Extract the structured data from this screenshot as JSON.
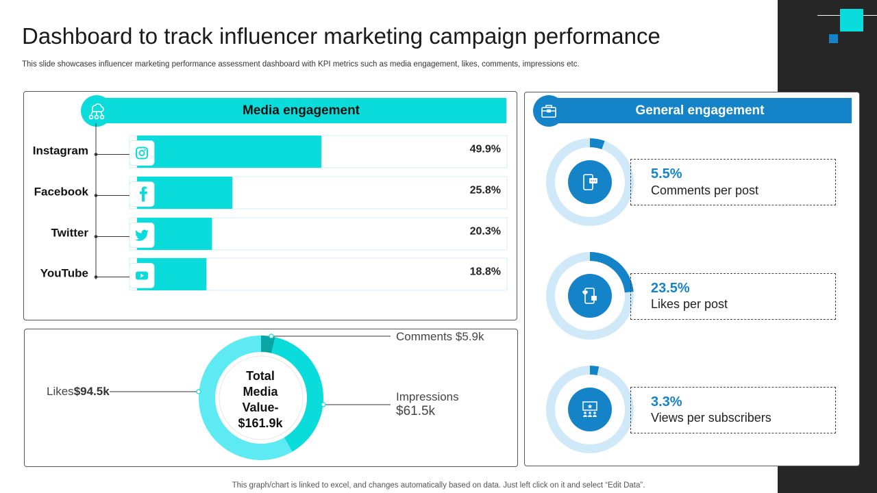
{
  "slide": {
    "title": "Dashboard to track influencer marketing campaign performance",
    "subtitle": "This slide showcases influencer marketing performance assessment dashboard with KPI metrics such as media engagement, likes, comments, impressions etc.",
    "footer": "This graph/chart is linked to excel,  and changes automatically based on data. Just left click on it and select “Edit Data”."
  },
  "colors": {
    "cyan": "#0adcdc",
    "blue": "#1583c8",
    "light_blue": "#cfe9f8",
    "dark_teal": "#0aa6a6",
    "light_cyan": "#5eeaf2",
    "band": "#262626"
  },
  "chart_data": [
    {
      "type": "bar",
      "title": "Media engagement",
      "categories": [
        "Instagram",
        "Facebook",
        "Twitter",
        "YouTube"
      ],
      "values": [
        49.9,
        25.8,
        20.3,
        18.8
      ],
      "value_labels": [
        "49.9%",
        "25.8%",
        "20.3%",
        "18.8%"
      ],
      "icons": [
        "instagram-icon",
        "facebook-icon",
        "twitter-icon",
        "youtube-icon"
      ],
      "ylim": [
        0,
        100
      ]
    },
    {
      "type": "pie",
      "center_label": [
        "Total",
        "Media",
        "Value-",
        "$161.9k"
      ],
      "slices": [
        {
          "name": "Comments",
          "label": "Comments $5.9k",
          "value": 5.9
        },
        {
          "name": "Impressions",
          "label_line1": "Impressions",
          "label_line2": "$61.5k",
          "value": 61.5
        },
        {
          "name": "Likes",
          "label_name": "Likes",
          "label_value": "$94.5k",
          "value": 94.5
        }
      ]
    },
    {
      "type": "pie",
      "title": "General engagement",
      "items": [
        {
          "value": 5.5,
          "value_label": "5.5%",
          "label": "Comments per post",
          "icon": "phone-chat-icon"
        },
        {
          "value": 23.5,
          "value_label": "23.5%",
          "label": "Likes per post",
          "icon": "phone-like-icon"
        },
        {
          "value": 3.3,
          "value_label": "3.3%",
          "label": "Views per subscribers",
          "icon": "audience-screen-icon"
        }
      ]
    }
  ]
}
